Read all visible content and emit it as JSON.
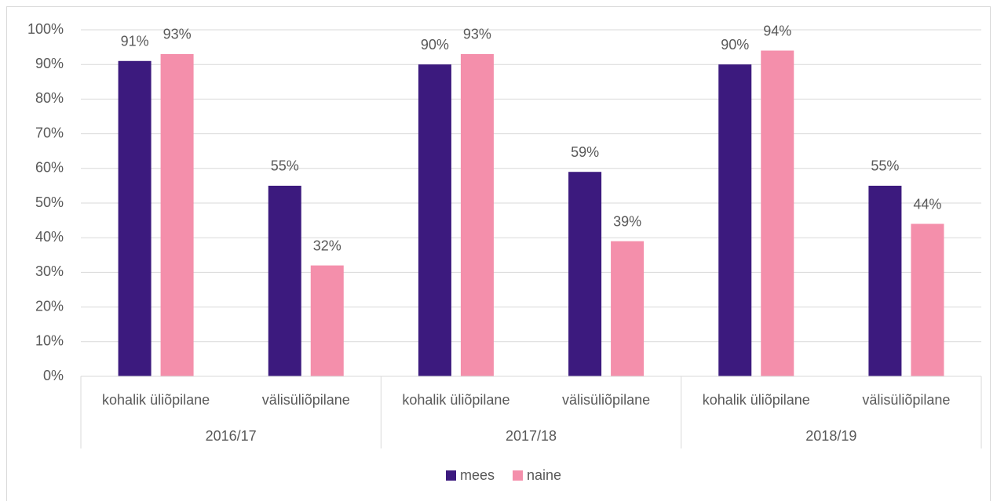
{
  "chart_data": {
    "type": "bar",
    "categories": [
      "kohalik üliõpilane",
      "välisüliõpilane",
      "kohalik üliõpilane",
      "välisüliõpilane",
      "kohalik üliõpilane",
      "välisüliõpilane"
    ],
    "groups": [
      "2016/17",
      "2017/18",
      "2018/19"
    ],
    "series": [
      {
        "name": "mees",
        "color": "#3c1a7e",
        "values": [
          91,
          55,
          90,
          59,
          90,
          55
        ],
        "value_labels": [
          "91%",
          "55%",
          "90%",
          "59%",
          "90%",
          "55%"
        ]
      },
      {
        "name": "naine",
        "color": "#f48fab",
        "values": [
          93,
          32,
          93,
          39,
          94,
          44
        ],
        "value_labels": [
          "93%",
          "32%",
          "93%",
          "39%",
          "94%",
          "44%"
        ]
      }
    ],
    "ylim": [
      0,
      100
    ],
    "yticks": [
      {
        "value": 0,
        "label": "0%"
      },
      {
        "value": 10,
        "label": "10%"
      },
      {
        "value": 20,
        "label": "20%"
      },
      {
        "value": 30,
        "label": "30%"
      },
      {
        "value": 40,
        "label": "40%"
      },
      {
        "value": 50,
        "label": "50%"
      },
      {
        "value": 60,
        "label": "60%"
      },
      {
        "value": 70,
        "label": "70%"
      },
      {
        "value": 80,
        "label": "80%"
      },
      {
        "value": 90,
        "label": "90%"
      },
      {
        "value": 100,
        "label": "100%"
      }
    ],
    "grid": true,
    "legend": "bottom"
  }
}
